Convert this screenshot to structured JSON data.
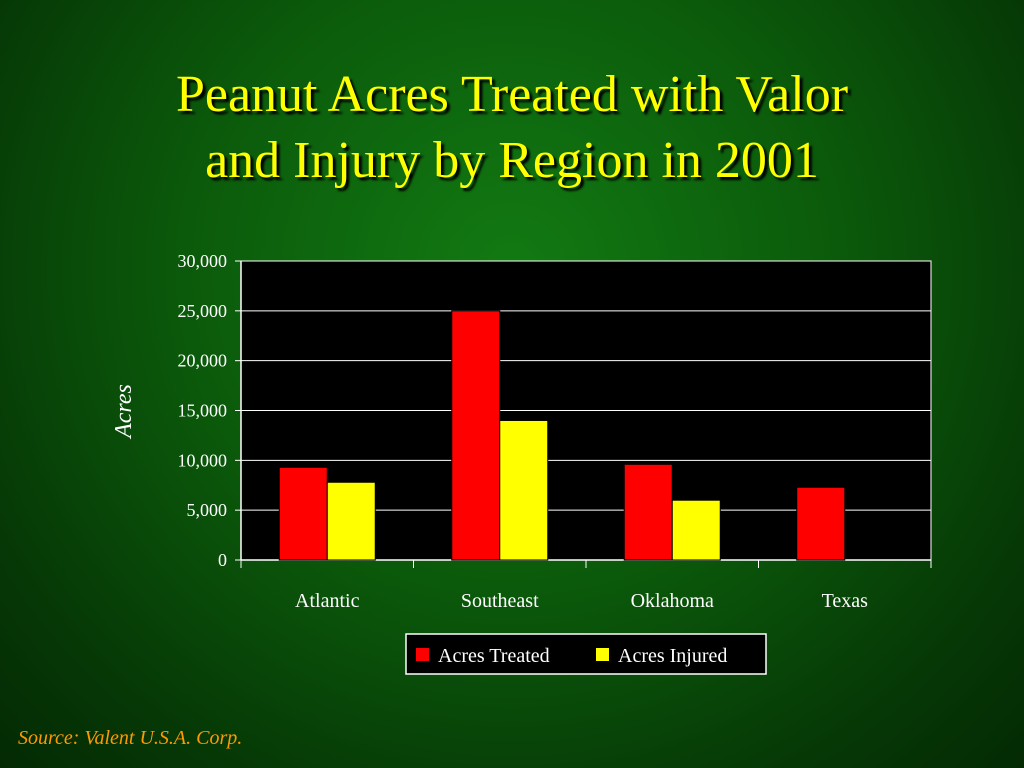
{
  "slide": {
    "title_line1": "Peanut Acres Treated with Valor",
    "title_line2": "and Injury by Region in 2001",
    "source": "Source: Valent U.S.A. Corp."
  },
  "colors": {
    "title": "#ffff00",
    "source": "#ff9900",
    "plot_background": "#000000",
    "treated": "#ff0000",
    "injured": "#ffff00",
    "text": "#ffffff"
  },
  "chart_data": {
    "type": "bar",
    "title": "",
    "xlabel": "",
    "ylabel": "Acres",
    "categories": [
      "Atlantic",
      "Southeast",
      "Oklahoma",
      "Texas"
    ],
    "series": [
      {
        "name": "Acres Treated",
        "values": [
          9300,
          25000,
          9600,
          7300
        ]
      },
      {
        "name": "Acres Injured",
        "values": [
          7800,
          14000,
          6000,
          null
        ]
      }
    ],
    "ylim": [
      0,
      30000
    ],
    "yticks": [
      "0",
      "5,000",
      "10,000",
      "15,000",
      "20,000",
      "25,000",
      "30,000"
    ],
    "grid": true,
    "legend": "bottom"
  }
}
